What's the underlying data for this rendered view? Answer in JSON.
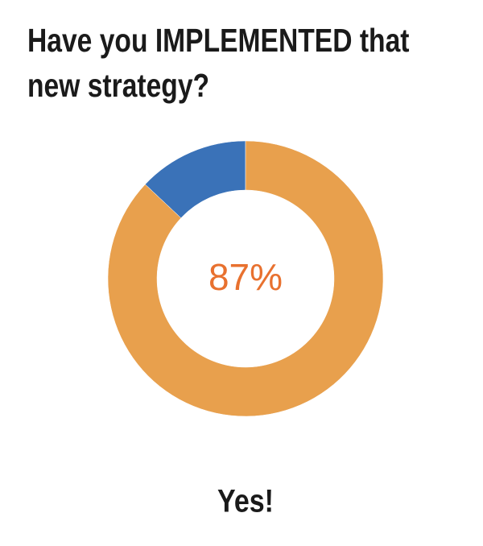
{
  "chart_data": {
    "type": "pie",
    "title": "Have you IMPLEMENTED that new strategy?",
    "values": [
      87,
      13
    ],
    "value_labels": [
      "87%",
      null
    ],
    "colors": [
      "#e8a04d",
      "#3a72b8"
    ],
    "donut": true,
    "caption": "Yes!"
  }
}
